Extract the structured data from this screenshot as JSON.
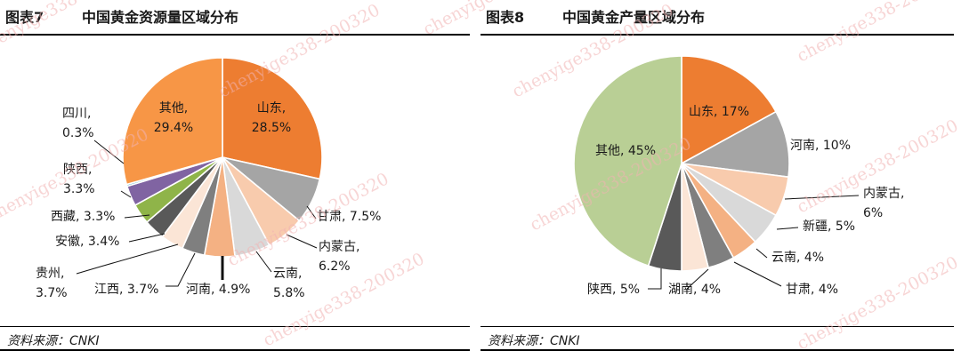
{
  "left": {
    "figure_label": "图表7",
    "title": "中国黄金资源量区域分布",
    "source": "资料来源：CNKI"
  },
  "right": {
    "figure_label": "图表8",
    "title": "中国黄金产量区域分布",
    "source": "资料来源：CNKI"
  },
  "watermark": "chenyige338-200320",
  "chart_data": [
    {
      "type": "pie",
      "title": "中国黄金资源量区域分布",
      "slices": [
        {
          "label": "山东",
          "value": 28.5,
          "color": "#ed7d31"
        },
        {
          "label": "甘肃",
          "value": 7.5,
          "color": "#a5a5a5"
        },
        {
          "label": "内蒙古",
          "value": 6.2,
          "color": "#f8cbad"
        },
        {
          "label": "云南",
          "value": 5.8,
          "color": "#d9d9d9"
        },
        {
          "label": "河南",
          "value": 4.9,
          "color": "#f4b183"
        },
        {
          "label": "江西",
          "value": 3.7,
          "color": "#7f7f7f"
        },
        {
          "label": "贵州",
          "value": 3.7,
          "color": "#fbe5d6"
        },
        {
          "label": "安徽",
          "value": 3.4,
          "color": "#595959"
        },
        {
          "label": "西藏",
          "value": 3.3,
          "color": "#8fb449"
        },
        {
          "label": "陕西",
          "value": 3.3,
          "color": "#8064a2"
        },
        {
          "label": "四川",
          "value": 0.3,
          "color": "#4bacc6"
        },
        {
          "label": "其他",
          "value": 29.4,
          "color": "#f79646"
        }
      ],
      "labels": [
        {
          "lines": [
            "山东,",
            "28.5%"
          ]
        },
        {
          "lines": [
            "甘肃, 7.5%"
          ]
        },
        {
          "lines": [
            "内蒙古,",
            "6.2%"
          ]
        },
        {
          "lines": [
            "云南,",
            "5.8%"
          ]
        },
        {
          "lines": [
            "河南, 4.9%"
          ]
        },
        {
          "lines": [
            "江西, 3.7%"
          ]
        },
        {
          "lines": [
            "贵州,",
            "3.7%"
          ]
        },
        {
          "lines": [
            "安徽, 3.4%"
          ]
        },
        {
          "lines": [
            "西藏, 3.3%"
          ]
        },
        {
          "lines": [
            "陕西,",
            "3.3%"
          ]
        },
        {
          "lines": [
            "四川,",
            "0.3%"
          ]
        },
        {
          "lines": [
            "其他,",
            "29.4%"
          ]
        }
      ]
    },
    {
      "type": "pie",
      "title": "中国黄金产量区域分布",
      "slices": [
        {
          "label": "山东",
          "value": 17,
          "color": "#ed7d31"
        },
        {
          "label": "河南",
          "value": 10,
          "color": "#a5a5a5"
        },
        {
          "label": "内蒙古",
          "value": 6,
          "color": "#f8cbad"
        },
        {
          "label": "新疆",
          "value": 5,
          "color": "#d9d9d9"
        },
        {
          "label": "云南",
          "value": 4,
          "color": "#f4b183"
        },
        {
          "label": "甘肃",
          "value": 4,
          "color": "#7f7f7f"
        },
        {
          "label": "湖南",
          "value": 4,
          "color": "#fbe5d6"
        },
        {
          "label": "陕西",
          "value": 5,
          "color": "#595959"
        },
        {
          "label": "其他",
          "value": 45,
          "color": "#b9cf95"
        }
      ],
      "labels": [
        {
          "lines": [
            "山东, 17%"
          ]
        },
        {
          "lines": [
            "河南, 10%"
          ]
        },
        {
          "lines": [
            "内蒙古,",
            "6%"
          ]
        },
        {
          "lines": [
            "新疆, 5%"
          ]
        },
        {
          "lines": [
            "云南, 4%"
          ]
        },
        {
          "lines": [
            "甘肃, 4%"
          ]
        },
        {
          "lines": [
            "湖南, 4%"
          ]
        },
        {
          "lines": [
            "陕西, 5%"
          ]
        },
        {
          "lines": [
            "其他, 45%"
          ]
        }
      ]
    }
  ]
}
